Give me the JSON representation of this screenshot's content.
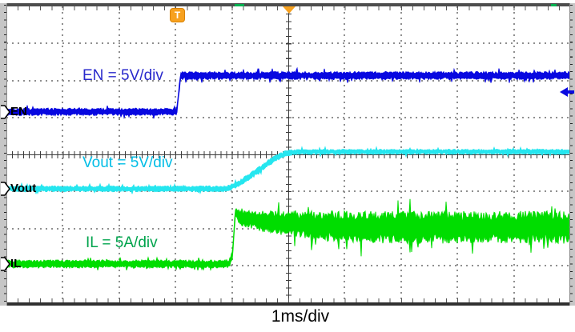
{
  "scope": {
    "timebase_label": "1ms/div",
    "trigger_flag_label": "T",
    "annotations": [
      {
        "text": "EN = 5V/div"
      },
      {
        "text": "Vout = 5V/div"
      },
      {
        "text": "IL = 5A/div"
      }
    ],
    "channel_markers": [
      {
        "label": "EN"
      },
      {
        "label": "Vout"
      },
      {
        "label": "IL"
      }
    ],
    "marker_colors": {
      "trigger_flag": "#f7a11f",
      "center_triangle": "#f7a11f",
      "right_arrow": "#0a0ae0",
      "top_ticks": "#00b050"
    }
  },
  "chart_data": {
    "type": "line",
    "title": "Oscilloscope startup capture: EN, Vout, IL",
    "xlabel": "1ms/div",
    "ylabel": "",
    "x_divisions": 10,
    "y_divisions": 8,
    "timebase": "1ms/div",
    "grid": "dotted graticule with center crosshair axes",
    "legend_position": "inline colored trace labels",
    "trigger": {
      "time_div": 3.0,
      "symbol": "T"
    },
    "points_format": "[time_div, level_div_from_top, noise_halfwidth_div]",
    "series": [
      {
        "name": "EN",
        "scale": "5V/div",
        "color": "#0808e0",
        "label_color": "#2929cc",
        "behavior": "enable signal steps low-to-high at trigger (t = 3 div)",
        "points": [
          [
            0,
            2.85,
            0.1
          ],
          [
            3.02,
            2.85,
            0.1
          ],
          [
            3.09,
            1.87,
            0.11
          ],
          [
            10,
            1.87,
            0.11
          ]
        ]
      },
      {
        "name": "Vout",
        "scale": "5V/div",
        "color": "#25e6ef",
        "label_color": "#00bde6",
        "behavior": "output voltage soft-start ramp beginning ~0.9 div after EN rises, settles ~1 div higher",
        "points": [
          [
            0,
            4.93,
            0.08
          ],
          [
            3.9,
            4.93,
            0.08
          ],
          [
            4.12,
            4.8,
            0.09
          ],
          [
            4.45,
            4.45,
            0.09
          ],
          [
            4.75,
            4.12,
            0.09
          ],
          [
            4.97,
            3.96,
            0.08
          ],
          [
            5.2,
            3.93,
            0.07
          ],
          [
            10,
            3.93,
            0.07
          ]
        ]
      },
      {
        "name": "IL",
        "scale": "5A/div",
        "color": "#00dd00",
        "label_color": "#00a44d",
        "behavior": "inductor current: inrush spike at startup then wide ripple band",
        "points": [
          [
            0,
            6.96,
            0.11
          ],
          [
            3.95,
            6.96,
            0.11
          ],
          [
            4.01,
            6.7,
            0.12
          ],
          [
            4.06,
            5.55,
            0.1
          ],
          [
            4.12,
            5.7,
            0.2
          ],
          [
            4.6,
            5.82,
            0.3
          ],
          [
            6.0,
            5.97,
            0.44
          ],
          [
            10,
            5.97,
            0.44
          ]
        ]
      }
    ]
  }
}
